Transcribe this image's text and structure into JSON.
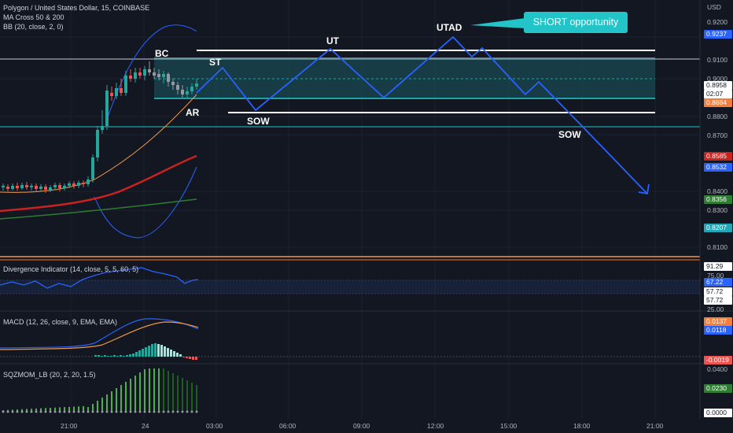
{
  "legend": {
    "symbol": "Polygon / United States Dollar, 15, COINBASE",
    "ma": "MA Cross 50 & 200",
    "bb": "BB (20, close, 2, 0)"
  },
  "price_axis": {
    "currency": "USD",
    "ticks": [
      "0.9200",
      "0.9100",
      "0.9000",
      "0.8800",
      "0.8700",
      "0.8400",
      "0.8300",
      "0.8100"
    ]
  },
  "price_badges": [
    {
      "text": "0.9237",
      "bg": "#2962ff",
      "fg": "#ffffff"
    },
    {
      "text": "0.8958",
      "bg": "#ffffff",
      "fg": "#131722"
    },
    {
      "text": "02:07",
      "bg": "#ffffff",
      "fg": "#131722"
    },
    {
      "text": "0.8884",
      "bg": "#f57f3a",
      "fg": "#ffffff"
    },
    {
      "text": "0.8585",
      "bg": "#c8231e",
      "fg": "#ffffff"
    },
    {
      "text": "0.8532",
      "bg": "#2962ff",
      "fg": "#ffffff"
    },
    {
      "text": "0.8356",
      "bg": "#2e7d32",
      "fg": "#ffffff"
    },
    {
      "text": "0.8207",
      "bg": "#22a7b8",
      "fg": "#ffffff"
    }
  ],
  "annotations": {
    "bc": "BC",
    "st": "ST",
    "ar": "AR",
    "sow1": "SOW",
    "ut": "UT",
    "utad": "UTAD",
    "sow2": "SOW",
    "callout": "SHORT opportunity"
  },
  "divergence": {
    "title": "Divergence Indicator (14, close, 5, 5, 60, 5)",
    "ticks": [
      "91.29",
      "75.00",
      "25.00"
    ],
    "badges": [
      "67.22",
      "57.72",
      "57.72"
    ]
  },
  "macd": {
    "title": "MACD (12, 26, close, 9, EMA, EMA)",
    "badges": [
      "0.0137",
      "0.0118",
      "-0.0019"
    ]
  },
  "sqz": {
    "title": "SQZMOM_LB (20, 2, 20, 1.5)",
    "ticks": [
      "0.0400"
    ],
    "badges": [
      "0.0230",
      "0.0000"
    ]
  },
  "time_axis": {
    "labels": [
      "21:00",
      "24",
      "03:00",
      "06:00",
      "09:00",
      "12:00",
      "15:00",
      "18:00",
      "21:00"
    ]
  },
  "colors": {
    "background": "#131722",
    "up": "#26a69a",
    "down": "#ef5350",
    "projection": "#2962ff",
    "range_fill": "#1f5f66",
    "range_line": "#22c4c7"
  }
}
